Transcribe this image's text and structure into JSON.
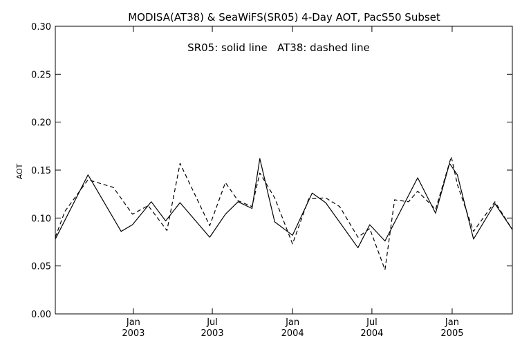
{
  "chart_data": {
    "type": "line",
    "title": "MODISA(AT38) & SeaWiFS(SR05) 4-Day AOT, PacS50 Subset",
    "annotation": "SR05: solid line   AT38: dashed line",
    "ylabel": "AOT",
    "xlabel": "",
    "ylim": [
      0.0,
      0.3
    ],
    "xlim": [
      "2002-07-06",
      "2005-05-19"
    ],
    "yticks": [
      {
        "value": 0.0,
        "label": "0.00"
      },
      {
        "value": 0.05,
        "label": "0.05"
      },
      {
        "value": 0.1,
        "label": "0.10"
      },
      {
        "value": 0.15,
        "label": "0.15"
      },
      {
        "value": 0.2,
        "label": "0.20"
      },
      {
        "value": 0.25,
        "label": "0.25"
      },
      {
        "value": 0.3,
        "label": "0.30"
      }
    ],
    "xticks": [
      {
        "date": "2003-01-01",
        "month": "Jan",
        "year": "2003"
      },
      {
        "date": "2003-07-01",
        "month": "Jul",
        "year": "2003"
      },
      {
        "date": "2004-01-01",
        "month": "Jan",
        "year": "2004"
      },
      {
        "date": "2004-07-01",
        "month": "Jul",
        "year": "2004"
      },
      {
        "date": "2005-01-01",
        "month": "Jan",
        "year": "2005"
      }
    ],
    "grid": false,
    "series": [
      {
        "name": "SR05",
        "style": "solid",
        "color": "#000000",
        "points": [
          {
            "x": "2002-07-06",
            "y": 0.078
          },
          {
            "x": "2002-09-19",
            "y": 0.145
          },
          {
            "x": "2002-12-04",
            "y": 0.086
          },
          {
            "x": "2002-12-30",
            "y": 0.093
          },
          {
            "x": "2003-02-11",
            "y": 0.117
          },
          {
            "x": "2003-03-16",
            "y": 0.097
          },
          {
            "x": "2003-04-18",
            "y": 0.116
          },
          {
            "x": "2003-06-25",
            "y": 0.08
          },
          {
            "x": "2003-07-31",
            "y": 0.104
          },
          {
            "x": "2003-08-29",
            "y": 0.117
          },
          {
            "x": "2003-09-30",
            "y": 0.11
          },
          {
            "x": "2003-10-18",
            "y": 0.162
          },
          {
            "x": "2003-11-21",
            "y": 0.096
          },
          {
            "x": "2004-01-01",
            "y": 0.082
          },
          {
            "x": "2004-02-15",
            "y": 0.126
          },
          {
            "x": "2004-03-17",
            "y": 0.116
          },
          {
            "x": "2004-05-30",
            "y": 0.069
          },
          {
            "x": "2004-06-26",
            "y": 0.093
          },
          {
            "x": "2004-07-31",
            "y": 0.076
          },
          {
            "x": "2004-10-14",
            "y": 0.142
          },
          {
            "x": "2004-11-24",
            "y": 0.105
          },
          {
            "x": "2004-12-26",
            "y": 0.157
          },
          {
            "x": "2005-01-13",
            "y": 0.145
          },
          {
            "x": "2005-02-19",
            "y": 0.078
          },
          {
            "x": "2005-04-09",
            "y": 0.115
          },
          {
            "x": "2005-05-19",
            "y": 0.088
          }
        ]
      },
      {
        "name": "AT38",
        "style": "dashed",
        "color": "#000000",
        "points": [
          {
            "x": "2002-07-06",
            "y": 0.08
          },
          {
            "x": "2002-07-28",
            "y": 0.107
          },
          {
            "x": "2002-09-19",
            "y": 0.14
          },
          {
            "x": "2002-11-16",
            "y": 0.132
          },
          {
            "x": "2002-12-30",
            "y": 0.104
          },
          {
            "x": "2003-02-04",
            "y": 0.113
          },
          {
            "x": "2003-03-19",
            "y": 0.087
          },
          {
            "x": "2003-04-18",
            "y": 0.157
          },
          {
            "x": "2003-06-25",
            "y": 0.092
          },
          {
            "x": "2003-07-31",
            "y": 0.137
          },
          {
            "x": "2003-08-29",
            "y": 0.118
          },
          {
            "x": "2003-09-30",
            "y": 0.112
          },
          {
            "x": "2003-10-18",
            "y": 0.147
          },
          {
            "x": "2003-11-21",
            "y": 0.121
          },
          {
            "x": "2004-01-01",
            "y": 0.073
          },
          {
            "x": "2004-02-07",
            "y": 0.12
          },
          {
            "x": "2004-03-17",
            "y": 0.121
          },
          {
            "x": "2004-04-18",
            "y": 0.112
          },
          {
            "x": "2004-05-30",
            "y": 0.08
          },
          {
            "x": "2004-06-26",
            "y": 0.089
          },
          {
            "x": "2004-07-31",
            "y": 0.046
          },
          {
            "x": "2004-08-22",
            "y": 0.119
          },
          {
            "x": "2004-09-23",
            "y": 0.117
          },
          {
            "x": "2004-10-14",
            "y": 0.128
          },
          {
            "x": "2004-11-24",
            "y": 0.109
          },
          {
            "x": "2004-12-30",
            "y": 0.164
          },
          {
            "x": "2005-01-13",
            "y": 0.135
          },
          {
            "x": "2005-02-19",
            "y": 0.086
          },
          {
            "x": "2005-04-09",
            "y": 0.117
          },
          {
            "x": "2005-05-19",
            "y": 0.088
          }
        ]
      }
    ]
  }
}
